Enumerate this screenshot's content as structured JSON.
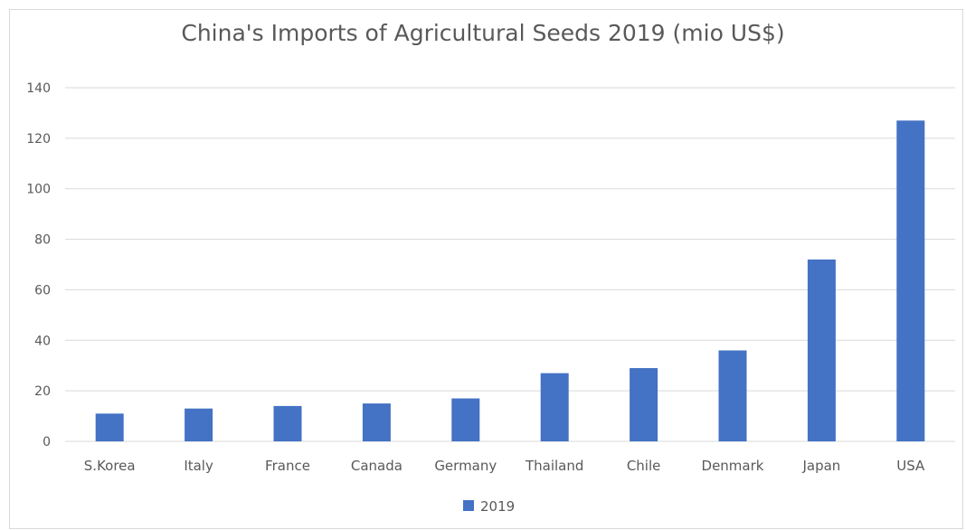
{
  "chart_data": {
    "type": "bar",
    "title": "China's Imports of Agricultural Seeds 2019 (mio US$)",
    "xlabel": "",
    "ylabel": "",
    "categories": [
      "S.Korea",
      "Italy",
      "France",
      "Canada",
      "Germany",
      "Thailand",
      "Chile",
      "Denmark",
      "Japan",
      "USA"
    ],
    "series": [
      {
        "name": "2019",
        "values": [
          11,
          13,
          14,
          15,
          17,
          27,
          29,
          36,
          72,
          127
        ],
        "color": "#4472c4"
      }
    ],
    "ylim": [
      0,
      140
    ],
    "yticks": [
      0,
      20,
      40,
      60,
      80,
      100,
      120,
      140
    ],
    "grid": true,
    "legend_position": "bottom"
  }
}
